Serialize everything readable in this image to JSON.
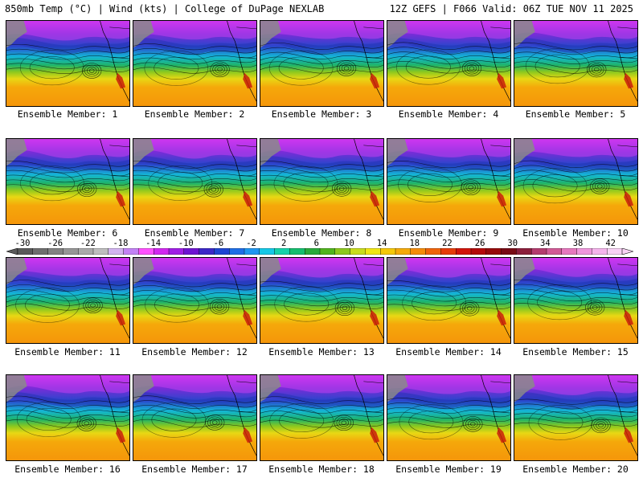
{
  "header": {
    "left": "850mb Temp (°C) | Wind (kts) | College of DuPage NEXLAB",
    "right": "12Z GEFS | F066 Valid: 06Z TUE NOV 11 2025"
  },
  "members": [
    "Ensemble Member: 1",
    "Ensemble Member: 2",
    "Ensemble Member: 3",
    "Ensemble Member: 4",
    "Ensemble Member: 5",
    "Ensemble Member: 6",
    "Ensemble Member: 7",
    "Ensemble Member: 8",
    "Ensemble Member: 9",
    "Ensemble Member: 10",
    "Ensemble Member: 11",
    "Ensemble Member: 12",
    "Ensemble Member: 13",
    "Ensemble Member: 14",
    "Ensemble Member: 15",
    "Ensemble Member: 16",
    "Ensemble Member: 17",
    "Ensemble Member: 18",
    "Ensemble Member: 19",
    "Ensemble Member: 20"
  ],
  "colorbar": {
    "ticks": [
      "-30",
      "-26",
      "-22",
      "-18",
      "-14",
      "-10",
      "-6",
      "-2",
      "2",
      "6",
      "10",
      "14",
      "18",
      "22",
      "26",
      "30",
      "34",
      "38",
      "42"
    ],
    "colors": [
      "#5a5a5a",
      "#6e6e6e",
      "#828282",
      "#969696",
      "#aaaaaa",
      "#bebebe",
      "#d2b4f0",
      "#c382f5",
      "#ff50ff",
      "#d228f0",
      "#a01ee6",
      "#6e14d2",
      "#3c28c8",
      "#1e46d2",
      "#1e6ee6",
      "#1e96f0",
      "#14c8e6",
      "#14d2aa",
      "#14be6e",
      "#28aa3c",
      "#50b41e",
      "#8cc81e",
      "#c8dc1e",
      "#f0e614",
      "#f5c80a",
      "#f5aa0a",
      "#f58c0a",
      "#f0640a",
      "#e63c0a",
      "#d2140a",
      "#b40a0a",
      "#960a0a",
      "#780a14",
      "#8c1e3c",
      "#b43c6e",
      "#d25a96",
      "#e678be",
      "#f096dc",
      "#f5b4ec",
      "#f8d2f5"
    ]
  }
}
